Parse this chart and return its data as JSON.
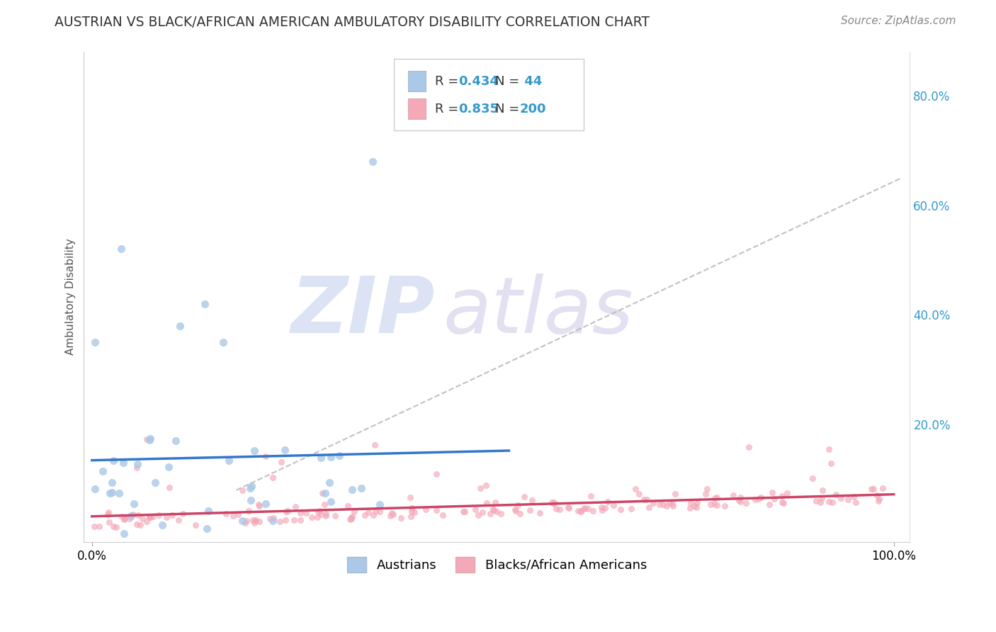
{
  "title": "AUSTRIAN VS BLACK/AFRICAN AMERICAN AMBULATORY DISABILITY CORRELATION CHART",
  "source": "Source: ZipAtlas.com",
  "ylabel": "Ambulatory Disability",
  "legend_label1": "Austrians",
  "legend_label2": "Blacks/African Americans",
  "R1": 0.434,
  "N1": 44,
  "R2": 0.835,
  "N2": 200,
  "scatter_color1": "#aac8e8",
  "scatter_color2": "#f4a8b8",
  "line_color1": "#3377cc",
  "line_color2": "#cc4466",
  "dashed_line_color": "#bbbbbb",
  "background_color": "#ffffff",
  "grid_color": "#dddddd",
  "title_color": "#333333",
  "watermark_zip_color": "#ccd8f0",
  "watermark_atlas_color": "#d0cce8",
  "right_tick_color": "#3399cc",
  "y_ticks_right": [
    0.0,
    0.2,
    0.4,
    0.6,
    0.8
  ],
  "y_tick_labels_right": [
    "",
    "20.0%",
    "40.0%",
    "60.0%",
    "80.0%"
  ]
}
